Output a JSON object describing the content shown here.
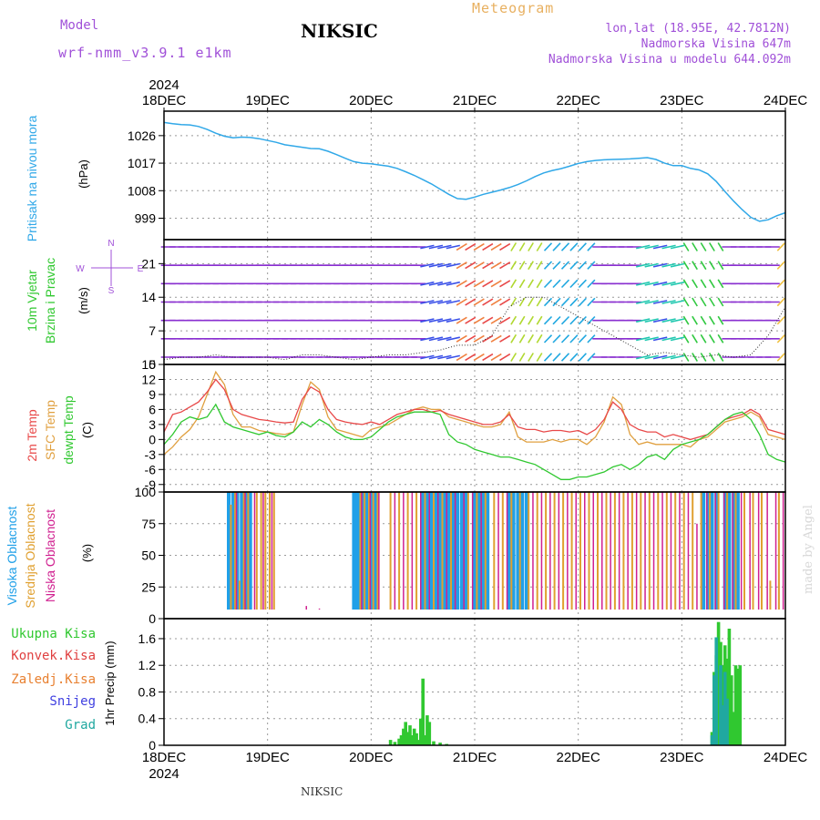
{
  "header": {
    "title": "NIKSIC",
    "model_label": "Model",
    "model_value": "wrf-nmm_v3.9.1 e1km",
    "meteogram_label": "Meteogram",
    "coords": "lon,lat (18.95E, 42.7812N)",
    "altitude": "Nadmorska Visina 647m",
    "model_altitude": "Nadmorska Visina u modelu 644.092m"
  },
  "footer": {
    "location": "NIKSIC",
    "credit": "made by Angel"
  },
  "colors": {
    "pressure": "#30a8e8",
    "temp_2m": "#e84848",
    "temp_sfc": "#e0a040",
    "temp_dew": "#30c830",
    "cloud_high": "#20a0e8",
    "cloud_mid": "#e0a030",
    "cloud_low": "#d02090",
    "precip_total": "#30c830",
    "precip_conv": "#e04040",
    "precip_frz": "#e88030",
    "precip_snow": "#4040e0",
    "precip_graupel": "#20a8a0",
    "wind_label": "#a050d8",
    "grid": "#999999"
  },
  "chart_data": [
    {
      "type": "line",
      "panel": "pressure",
      "ylabel": "Pritisak na nivou mora",
      "unit": "(hPa)",
      "ylim": [
        992,
        1034
      ],
      "yticks": [
        999,
        1008,
        1017,
        1026
      ],
      "grid": true,
      "x_top_year": "2024",
      "x_ticks": [
        "18DEC",
        "19DEC",
        "20DEC",
        "21DEC",
        "22DEC",
        "23DEC",
        "24DEC"
      ],
      "x_hours": [
        0,
        2,
        4,
        6,
        8,
        10,
        12,
        14,
        16,
        18,
        20,
        22,
        24,
        26,
        28,
        30,
        32,
        34,
        36,
        38,
        40,
        42,
        44,
        46,
        48,
        50,
        52,
        54,
        56,
        58,
        60,
        62,
        64,
        66,
        68,
        70,
        72,
        74,
        76,
        78,
        80,
        82,
        84,
        86,
        88,
        90,
        92,
        94,
        96,
        98,
        100,
        102,
        104,
        106,
        108,
        110,
        112,
        114,
        116,
        118,
        120,
        122,
        124,
        126,
        128,
        130,
        132,
        134,
        136,
        138,
        140,
        142,
        144
      ],
      "series": [
        {
          "name": "Pritisak na nivou mora",
          "values": [
            1030.3,
            1029.9,
            1029.6,
            1029.5,
            1029.0,
            1028.0,
            1026.8,
            1025.8,
            1025.3,
            1025.5,
            1025.4,
            1025.0,
            1024.4,
            1023.8,
            1023.0,
            1022.6,
            1022.2,
            1021.8,
            1021.7,
            1020.9,
            1019.8,
            1018.6,
            1017.5,
            1017.0,
            1016.8,
            1016.4,
            1016.0,
            1015.3,
            1014.2,
            1013.0,
            1011.6,
            1010.2,
            1008.5,
            1006.8,
            1005.4,
            1005.2,
            1005.9,
            1006.8,
            1007.5,
            1008.2,
            1009.0,
            1010.0,
            1011.2,
            1012.6,
            1013.8,
            1014.6,
            1015.2,
            1016.0,
            1016.9,
            1017.5,
            1017.9,
            1018.1,
            1018.2,
            1018.3,
            1018.4,
            1018.6,
            1018.8,
            1018.2,
            1017.0,
            1016.2,
            1016.2,
            1015.3,
            1014.8,
            1013.5,
            1011.0,
            1007.7,
            1004.6,
            1001.8,
            999.3,
            998.0,
            998.5,
            999.8,
            1000.8
          ]
        }
      ]
    },
    {
      "type": "line",
      "panel": "wind",
      "ylabel": "10m Vjetar Brzina i Pravac",
      "unit": "(m/s)",
      "compass": [
        "N",
        "S",
        "W",
        "E"
      ],
      "ylim": [
        0,
        26
      ],
      "yticks": [
        0,
        7,
        14,
        21
      ],
      "grid": true,
      "x_hours": [
        0,
        4,
        8,
        12,
        16,
        20,
        24,
        28,
        32,
        36,
        40,
        44,
        48,
        52,
        56,
        60,
        64,
        68,
        72,
        76,
        80,
        84,
        88,
        92,
        96,
        100,
        104,
        108,
        112,
        116,
        120,
        124,
        128,
        132,
        136,
        140,
        144
      ],
      "series": [
        {
          "name": "speed",
          "values": [
            1.0,
            1.5,
            1.5,
            2.0,
            1.5,
            1.5,
            1.5,
            1.0,
            2.0,
            2.0,
            1.5,
            1.0,
            1.5,
            2.0,
            2.0,
            2.5,
            3.0,
            4.0,
            4.0,
            6.0,
            12.0,
            14.0,
            14.0,
            12.0,
            10.0,
            8.0,
            6.0,
            4.0,
            2.0,
            2.5,
            2.0,
            1.5,
            2.0,
            1.5,
            2.0,
            6.0,
            12.0
          ]
        }
      ]
    },
    {
      "type": "line",
      "panel": "temperature",
      "ylabel_lines": [
        "2m Temp",
        "SFC Temp",
        "dewpt Temp"
      ],
      "unit": "(C)",
      "ylim": [
        -10.5,
        15
      ],
      "yticks": [
        -9,
        -6,
        -3,
        0,
        3,
        6,
        9,
        12,
        15
      ],
      "grid": true,
      "x_hours": [
        0,
        2,
        4,
        6,
        8,
        10,
        12,
        14,
        16,
        18,
        20,
        22,
        24,
        26,
        28,
        30,
        32,
        34,
        36,
        38,
        40,
        42,
        44,
        46,
        48,
        50,
        52,
        54,
        56,
        58,
        60,
        62,
        64,
        66,
        68,
        70,
        72,
        74,
        76,
        78,
        80,
        82,
        84,
        86,
        88,
        90,
        92,
        94,
        96,
        98,
        100,
        102,
        104,
        106,
        108,
        110,
        112,
        114,
        116,
        118,
        120,
        122,
        124,
        126,
        128,
        130,
        132,
        134,
        136,
        138,
        140,
        142,
        144
      ],
      "series": [
        {
          "name": "2m Temp",
          "values": [
            1.5,
            5.0,
            5.5,
            6.5,
            7.5,
            9.5,
            12.0,
            10.0,
            6.0,
            5.0,
            4.5,
            4.0,
            3.8,
            3.5,
            3.3,
            3.5,
            8.0,
            10.5,
            9.5,
            6.0,
            4.0,
            3.5,
            3.2,
            3.0,
            3.5,
            3.0,
            4.0,
            5.0,
            5.5,
            6.0,
            6.0,
            5.5,
            5.8,
            5.0,
            4.5,
            4.0,
            3.5,
            3.0,
            3.0,
            3.5,
            5.0,
            2.5,
            2.0,
            2.0,
            1.5,
            1.8,
            1.8,
            1.5,
            1.8,
            1.0,
            2.0,
            4.0,
            7.5,
            6.0,
            3.0,
            2.0,
            1.5,
            1.5,
            0.5,
            1.0,
            0.5,
            0.0,
            0.5,
            1.0,
            2.5,
            4.0,
            4.5,
            5.0,
            6.0,
            5.0,
            2.0,
            1.5,
            1.0
          ]
        },
        {
          "name": "SFC Temp",
          "values": [
            -3.0,
            -1.5,
            0.5,
            2.0,
            4.5,
            9.0,
            13.5,
            11.0,
            5.0,
            2.5,
            2.5,
            1.8,
            1.5,
            1.2,
            1.0,
            1.5,
            7.0,
            11.5,
            10.0,
            4.5,
            2.0,
            1.5,
            1.0,
            0.5,
            2.0,
            2.5,
            3.0,
            4.0,
            5.0,
            6.0,
            6.5,
            6.0,
            6.0,
            4.5,
            4.0,
            3.5,
            3.0,
            2.5,
            2.5,
            3.0,
            5.5,
            0.5,
            -0.5,
            -0.5,
            -0.5,
            0.0,
            -0.5,
            0.0,
            0.0,
            -1.0,
            0.5,
            3.5,
            8.5,
            7.0,
            1.0,
            -1.0,
            -0.5,
            -1.0,
            -1.0,
            -1.0,
            -1.0,
            -1.5,
            0.0,
            0.5,
            2.0,
            3.5,
            4.0,
            4.5,
            5.5,
            4.5,
            1.0,
            0.5,
            0.0
          ]
        },
        {
          "name": "dewpt Temp",
          "values": [
            -1.0,
            1.0,
            3.5,
            4.5,
            4.0,
            4.5,
            7.0,
            3.5,
            2.5,
            2.0,
            1.5,
            1.0,
            1.5,
            0.8,
            0.5,
            1.5,
            3.5,
            2.5,
            4.0,
            3.0,
            1.5,
            0.5,
            0.0,
            0.0,
            0.5,
            2.0,
            3.5,
            4.5,
            5.0,
            5.5,
            5.5,
            5.5,
            5.0,
            1.0,
            -0.5,
            -1.0,
            -2.0,
            -2.5,
            -3.0,
            -3.5,
            -3.5,
            -4.0,
            -4.5,
            -5.0,
            -6.0,
            -7.0,
            -8.0,
            -8.0,
            -7.5,
            -7.5,
            -7.0,
            -6.5,
            -5.5,
            -5.0,
            -6.0,
            -5.0,
            -3.5,
            -3.0,
            -4.0,
            -2.0,
            -1.0,
            -0.5,
            0.0,
            1.0,
            2.5,
            4.0,
            5.0,
            5.5,
            4.0,
            1.0,
            -3.0,
            -4.0,
            -4.5
          ]
        }
      ]
    },
    {
      "type": "bar",
      "panel": "cloud",
      "ylabel_lines": [
        "Visoka Oblacnost",
        "Srednja Oblacnost",
        "Niska Oblacnost"
      ],
      "unit": "(%)",
      "ylim": [
        0,
        100
      ],
      "yticks": [
        0,
        25,
        50,
        75,
        100
      ],
      "grid": true,
      "series": [
        {
          "name": "Visoka Oblacnost",
          "hours": [
            15.0,
            16.0,
            17.0,
            18.0,
            19.0,
            20.0,
            44.0,
            44.5,
            45.0,
            46.0,
            47.0,
            48.0,
            49.0,
            60.0,
            61.0,
            62.0,
            63.0,
            64.0,
            65.0,
            66.0,
            67.0,
            68.0,
            69.0,
            70.0,
            72.0,
            73.0,
            74.0,
            75.0,
            80.0,
            81.0,
            82.0,
            83.0,
            84.0,
            86.0,
            125.0,
            126.0,
            127.0,
            128.0,
            130.0,
            131.0,
            132.0,
            133.0
          ],
          "values": [
            100,
            100,
            100,
            100,
            100,
            100,
            100,
            100,
            100,
            100,
            100,
            100,
            100,
            100,
            100,
            100,
            100,
            100,
            100,
            100,
            100,
            100,
            100,
            100,
            100,
            100,
            100,
            100,
            100,
            100,
            100,
            100,
            100,
            5,
            100,
            100,
            100,
            100,
            100,
            100,
            100,
            100
          ]
        },
        {
          "name": "Srednja Oblacnost",
          "hours": [
            15.5,
            16.5,
            17.5,
            18.5,
            19.5,
            21.5,
            22.5,
            23.5,
            24.5,
            25.5,
            45.5,
            46.5,
            47.5,
            48.5,
            49.5,
            52.5,
            54.5,
            56.5,
            58.5,
            60.5,
            62.5,
            64.5,
            66.5,
            70.5,
            72.5,
            74.5,
            76.5,
            78.5,
            80.5,
            82.5,
            84.5,
            86.5,
            88.5,
            90.5,
            92.5,
            94.5,
            96.5,
            98.5,
            100.5,
            102.5,
            104.5,
            106.5,
            108.5,
            110.5,
            112.5,
            114.5,
            116.5,
            118.5,
            120.5,
            122.5,
            124.5,
            126.5,
            128.5,
            130.5,
            132.5,
            134.5,
            136.5,
            138.5,
            140.5,
            142.5
          ],
          "values": [
            90,
            100,
            30,
            100,
            100,
            100,
            100,
            100,
            100,
            100,
            100,
            100,
            100,
            100,
            100,
            100,
            100,
            100,
            100,
            100,
            100,
            100,
            100,
            100,
            100,
            100,
            100,
            100,
            100,
            100,
            100,
            100,
            100,
            100,
            100,
            100,
            100,
            100,
            100,
            100,
            100,
            100,
            100,
            100,
            100,
            100,
            100,
            100,
            100,
            100,
            100,
            100,
            100,
            100,
            100,
            100,
            100,
            100,
            30,
            100
          ]
        },
        {
          "name": "Niska Oblacnost",
          "hours": [
            16.8,
            18.8,
            21.0,
            23.0,
            25.0,
            33.0,
            36.0,
            39.0,
            45.8,
            47.8,
            49.8,
            53.5,
            55.5,
            57.5,
            59.5,
            61.5,
            63.5,
            65.5,
            67.5,
            69.5,
            71.5,
            73.5,
            77.5,
            79.5,
            85.5,
            87.5,
            89.5,
            91.5,
            93.5,
            95.5,
            97.5,
            99.5,
            101.5,
            103.5,
            105.5,
            107.5,
            109.5,
            111.5,
            113.5,
            115.5,
            117.5,
            119.5,
            121.5,
            123.5,
            125.8,
            127.8,
            129.8,
            131.8,
            133.8,
            135.8,
            137.8,
            139.8,
            141.8,
            143.5
          ],
          "values": [
            100,
            100,
            100,
            100,
            100,
            10,
            8,
            5,
            100,
            100,
            100,
            100,
            100,
            100,
            100,
            100,
            100,
            100,
            100,
            100,
            100,
            100,
            100,
            100,
            100,
            100,
            100,
            100,
            100,
            100,
            100,
            100,
            100,
            100,
            100,
            100,
            100,
            100,
            100,
            100,
            100,
            100,
            100,
            75,
            100,
            100,
            100,
            100,
            100,
            100,
            100,
            100,
            100,
            100
          ]
        }
      ]
    },
    {
      "type": "bar",
      "panel": "precipitation",
      "ylabel": "1hr Precip",
      "unit": "(mm)",
      "legend": [
        "Ukupna Kisa",
        "Konvek.Kisa",
        "Zaledj.Kisa",
        "Snijeg",
        "Grad"
      ],
      "ylim": [
        0,
        1.9
      ],
      "yticks": [
        0,
        0.4,
        0.8,
        1.2,
        1.6
      ],
      "grid": true,
      "x_bottom_year": "2024",
      "x_ticks": [
        "18DEC",
        "19DEC",
        "20DEC",
        "21DEC",
        "22DEC",
        "23DEC",
        "24DEC"
      ],
      "series": [
        {
          "name": "Ukupna Kisa",
          "hours": [
            52.5,
            53.5,
            54.5,
            55.0,
            55.5,
            56.0,
            56.5,
            57.0,
            57.5,
            58.0,
            58.5,
            59.0,
            59.5,
            60.0,
            60.5,
            61.0,
            61.5,
            62.5,
            64.0,
            65.5,
            127.0,
            127.5,
            128.0,
            128.5,
            129.0,
            129.5,
            130.0,
            130.5,
            131.0,
            131.5,
            132.0,
            132.5,
            133.0,
            133.5
          ],
          "values": [
            0.08,
            0.05,
            0.1,
            0.15,
            0.25,
            0.35,
            0.2,
            0.3,
            0.15,
            0.25,
            0.18,
            0.08,
            0.4,
            1.0,
            0.15,
            0.45,
            0.35,
            0.06,
            0.04,
            0.02,
            0.2,
            1.1,
            1.35,
            1.85,
            1.55,
            1.2,
            1.5,
            1.3,
            1.75,
            1.05,
            0.5,
            1.2,
            1.15,
            1.2
          ]
        },
        {
          "name": "Grad",
          "hours": [
            127.0,
            127.5,
            128.0,
            129.0,
            129.5,
            130.0,
            130.5
          ],
          "values": [
            0.15,
            1.05,
            1.62,
            1.2,
            0.6,
            1.1,
            0.7
          ]
        }
      ]
    }
  ]
}
